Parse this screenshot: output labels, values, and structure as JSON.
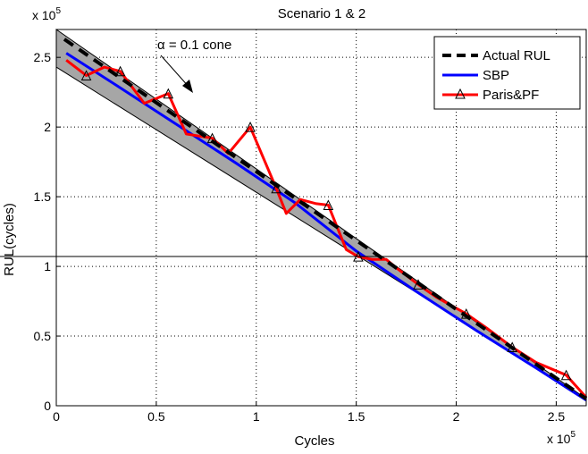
{
  "chart_data": {
    "type": "line",
    "title": "Scenario 1 & 2",
    "xlabel": "Cycles",
    "ylabel": "RUL(cycles)",
    "x_exponent_label": "x 10",
    "x_exponent": "5",
    "y_exponent_label": "x 10",
    "y_exponent": "5",
    "xlim": [
      0,
      2.65
    ],
    "ylim": [
      0,
      2.7
    ],
    "x_unit_scale": 100000,
    "y_unit_scale": 100000,
    "xticks": [
      0,
      0.5,
      1,
      1.5,
      2,
      2.5
    ],
    "yticks": [
      0,
      0.5,
      1,
      1.5,
      2,
      2.5
    ],
    "xtick_labels": [
      "0",
      "0.5",
      "1",
      "1.5",
      "2",
      "2.5"
    ],
    "ytick_labels": [
      "0",
      "0.5",
      "1",
      "1.5",
      "2",
      "2.5"
    ],
    "grid": true,
    "legend_position": "top-right",
    "cone": {
      "annotation": "α = 0.1 cone",
      "alpha": 0.1,
      "fill_color": "#a6a6a6",
      "upper": {
        "x": [
          0,
          2.65
        ],
        "y": [
          2.7,
          0.05
        ]
      },
      "lower": {
        "x": [
          0,
          2.65
        ],
        "y": [
          2.43,
          0.05
        ]
      }
    },
    "series": [
      {
        "name": "Actual RUL",
        "color": "#000000",
        "style": "dashed",
        "x": [
          0.04,
          2.65
        ],
        "y": [
          2.63,
          0.05
        ]
      },
      {
        "name": "SBP",
        "color": "#0000ff",
        "style": "solid",
        "x": [
          0.05,
          0.3,
          0.6,
          0.9,
          1.2,
          1.5,
          1.8,
          2.1,
          2.4,
          2.65
        ],
        "y": [
          2.53,
          2.3,
          2.02,
          1.74,
          1.45,
          1.11,
          0.82,
          0.54,
          0.27,
          0.04
        ]
      },
      {
        "name": "Paris&PF",
        "color": "#ff0000",
        "style": "solid",
        "marker": "triangle",
        "x": [
          0.05,
          0.15,
          0.24,
          0.32,
          0.44,
          0.56,
          0.65,
          0.78,
          0.86,
          0.97,
          1.1,
          1.15,
          1.22,
          1.3,
          1.36,
          1.45,
          1.51,
          1.58,
          1.65,
          1.7,
          1.81,
          1.9,
          2.05,
          2.15,
          2.28,
          2.4,
          2.55,
          2.65
        ],
        "y": [
          2.48,
          2.37,
          2.43,
          2.4,
          2.17,
          2.24,
          1.95,
          1.92,
          1.81,
          2.0,
          1.56,
          1.38,
          1.48,
          1.45,
          1.44,
          1.12,
          1.07,
          1.05,
          1.05,
          0.99,
          0.87,
          0.78,
          0.66,
          0.56,
          0.42,
          0.31,
          0.22,
          0.06
        ],
        "marker_x": [
          0.15,
          0.32,
          0.56,
          0.78,
          0.97,
          1.1,
          1.36,
          1.51,
          1.81,
          2.05,
          2.28,
          2.55
        ],
        "marker_y": [
          2.37,
          2.4,
          2.24,
          1.92,
          2.0,
          1.56,
          1.44,
          1.07,
          0.87,
          0.66,
          0.42,
          0.22
        ]
      }
    ]
  }
}
